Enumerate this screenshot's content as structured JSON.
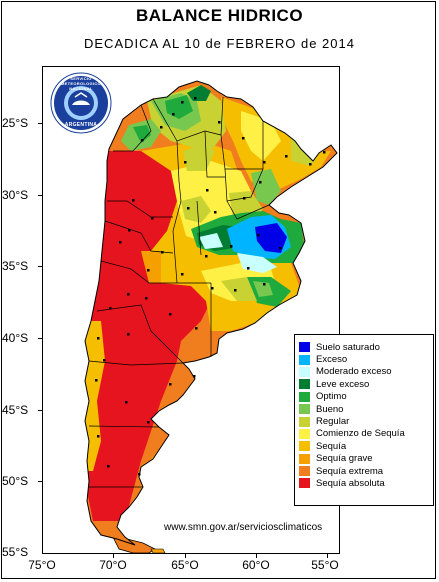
{
  "title": "BALANCE HIDRICO",
  "subtitle": "DECADICA AL 10 de FEBRERO de 2014",
  "latitudes": [
    "25°S",
    "30°S",
    "35°S",
    "40°S",
    "45°S",
    "50°S",
    "55°S"
  ],
  "longitudes": [
    "75°O",
    "70°O",
    "65°O",
    "60°O",
    "55°O"
  ],
  "legend": [
    {
      "label": "Suelo saturado",
      "color": "#0000e6"
    },
    {
      "label": "Exceso",
      "color": "#00b4ff"
    },
    {
      "label": "Moderado exceso",
      "color": "#c8ffff"
    },
    {
      "label": "Leve exceso",
      "color": "#007d32"
    },
    {
      "label": "Optimo",
      "color": "#1eaa3c"
    },
    {
      "label": "Bueno",
      "color": "#78c850"
    },
    {
      "label": "Regular",
      "color": "#c8d232"
    },
    {
      "label": "Comienzo de Sequía",
      "color": "#fff046"
    },
    {
      "label": "Sequía",
      "color": "#f5be00"
    },
    {
      "label": "Sequía grave",
      "color": "#f5a000"
    },
    {
      "label": "Sequía extrema",
      "color": "#f07d1e"
    },
    {
      "label": "Sequía absoluta",
      "color": "#e6141e"
    }
  ],
  "source_url": "www.smn.gov.ar/serviciosclimaticos",
  "logo": {
    "text": "SERVICIO METEOROLOGICO NACIONAL",
    "country": "ARGENTINA",
    "colors": {
      "ring": "#1a3f9c",
      "inner": "#9fd0ff"
    }
  }
}
